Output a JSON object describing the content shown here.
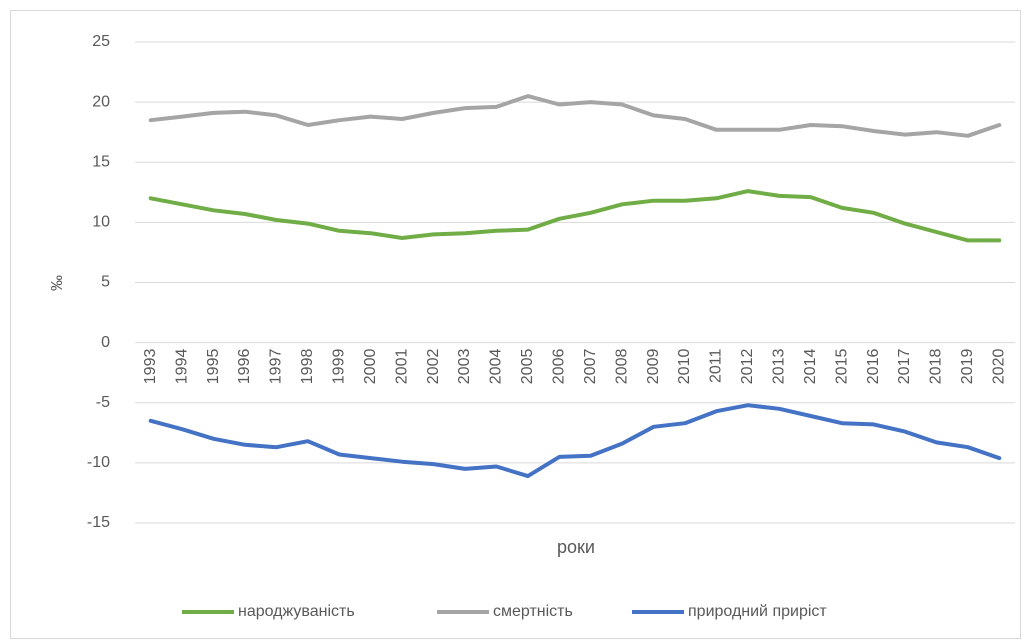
{
  "chart_data": {
    "type": "line",
    "y_label": "‰",
    "x_label": "роки",
    "categories": [
      "1993",
      "1994",
      "1995",
      "1996",
      "1997",
      "1998",
      "1999",
      "2000",
      "2001",
      "2002",
      "2003",
      "2004",
      "2005",
      "2006",
      "2007",
      "2008",
      "2009",
      "2010",
      "2011",
      "2012",
      "2013",
      "2014",
      "2015",
      "2016",
      "2017",
      "2018",
      "2019",
      "2020"
    ],
    "series": [
      {
        "name": "народжуваність",
        "color": "#70ad47",
        "values": [
          12.0,
          11.5,
          11.0,
          10.7,
          10.2,
          9.9,
          9.3,
          9.1,
          8.7,
          9.0,
          9.1,
          9.3,
          9.4,
          10.3,
          10.8,
          11.5,
          11.8,
          11.8,
          12.0,
          12.6,
          12.2,
          12.1,
          11.2,
          10.8,
          9.9,
          9.2,
          8.5,
          8.5
        ]
      },
      {
        "name": "смертність",
        "color": "#a5a5a5",
        "values": [
          18.5,
          18.8,
          19.1,
          19.2,
          18.9,
          18.1,
          18.5,
          18.8,
          18.6,
          19.1,
          19.5,
          19.6,
          20.5,
          19.8,
          20.0,
          19.8,
          18.9,
          18.6,
          17.7,
          17.7,
          17.7,
          18.1,
          18.0,
          17.6,
          17.3,
          17.5,
          17.2,
          18.1
        ]
      },
      {
        "name": "природний приріст",
        "color": "#4472c4",
        "values": [
          -6.5,
          -7.2,
          -8.0,
          -8.5,
          -8.7,
          -8.2,
          -9.3,
          -9.6,
          -9.9,
          -10.1,
          -10.5,
          -10.3,
          -11.1,
          -9.5,
          -9.4,
          -8.4,
          -7.0,
          -6.7,
          -5.7,
          -5.2,
          -5.5,
          -6.1,
          -6.7,
          -6.8,
          -7.4,
          -8.3,
          -8.7,
          -9.6
        ]
      }
    ],
    "ylim": [
      -15,
      25
    ],
    "yticks": [
      -15,
      -10,
      -5,
      0,
      5,
      10,
      15,
      20,
      25
    ],
    "grid": true,
    "legend": "bottom"
  }
}
